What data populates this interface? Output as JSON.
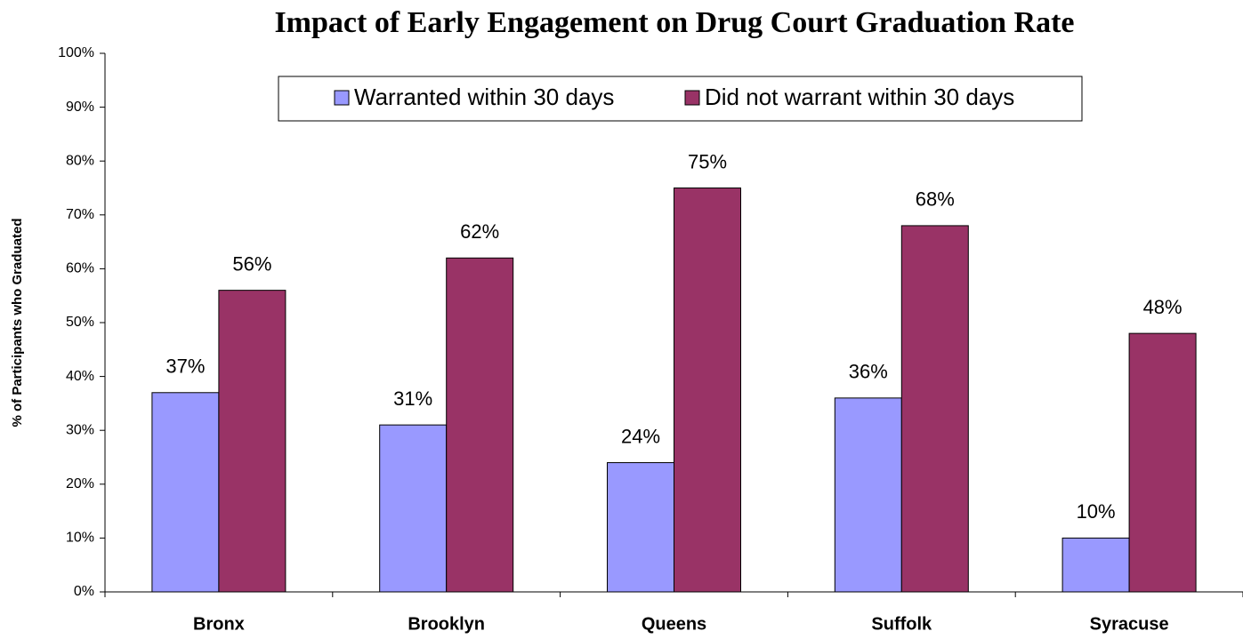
{
  "chart_data": {
    "type": "bar",
    "title": "Impact of Early Engagement on Drug Court Graduation Rate",
    "y_label": "% of Participants who Graduated",
    "categories": [
      "Bronx",
      "Brooklyn",
      "Queens",
      "Suffolk",
      "Syracuse"
    ],
    "series": [
      {
        "name": "Warranted within 30 days",
        "color": "#9999ff",
        "values": [
          37,
          31,
          24,
          36,
          10
        ],
        "value_labels": [
          "37%",
          "31%",
          "24%",
          "36%",
          "10%"
        ]
      },
      {
        "name": "Did not warrant within 30 days",
        "color": "#993366",
        "values": [
          56,
          62,
          75,
          68,
          48
        ],
        "value_labels": [
          "56%",
          "62%",
          "75%",
          "68%",
          "48%"
        ]
      }
    ],
    "ylim": [
      0,
      100
    ],
    "yticks": [
      {
        "value": 0,
        "label": "0%"
      },
      {
        "value": 10,
        "label": "10%"
      },
      {
        "value": 20,
        "label": "20%"
      },
      {
        "value": 30,
        "label": "30%"
      },
      {
        "value": 40,
        "label": "40%"
      },
      {
        "value": 50,
        "label": "50%"
      },
      {
        "value": 60,
        "label": "60%"
      },
      {
        "value": 70,
        "label": "70%"
      },
      {
        "value": 80,
        "label": "80%"
      },
      {
        "value": 90,
        "label": "90%"
      },
      {
        "value": 100,
        "label": "100%"
      }
    ],
    "grid": false,
    "legend": "top"
  }
}
